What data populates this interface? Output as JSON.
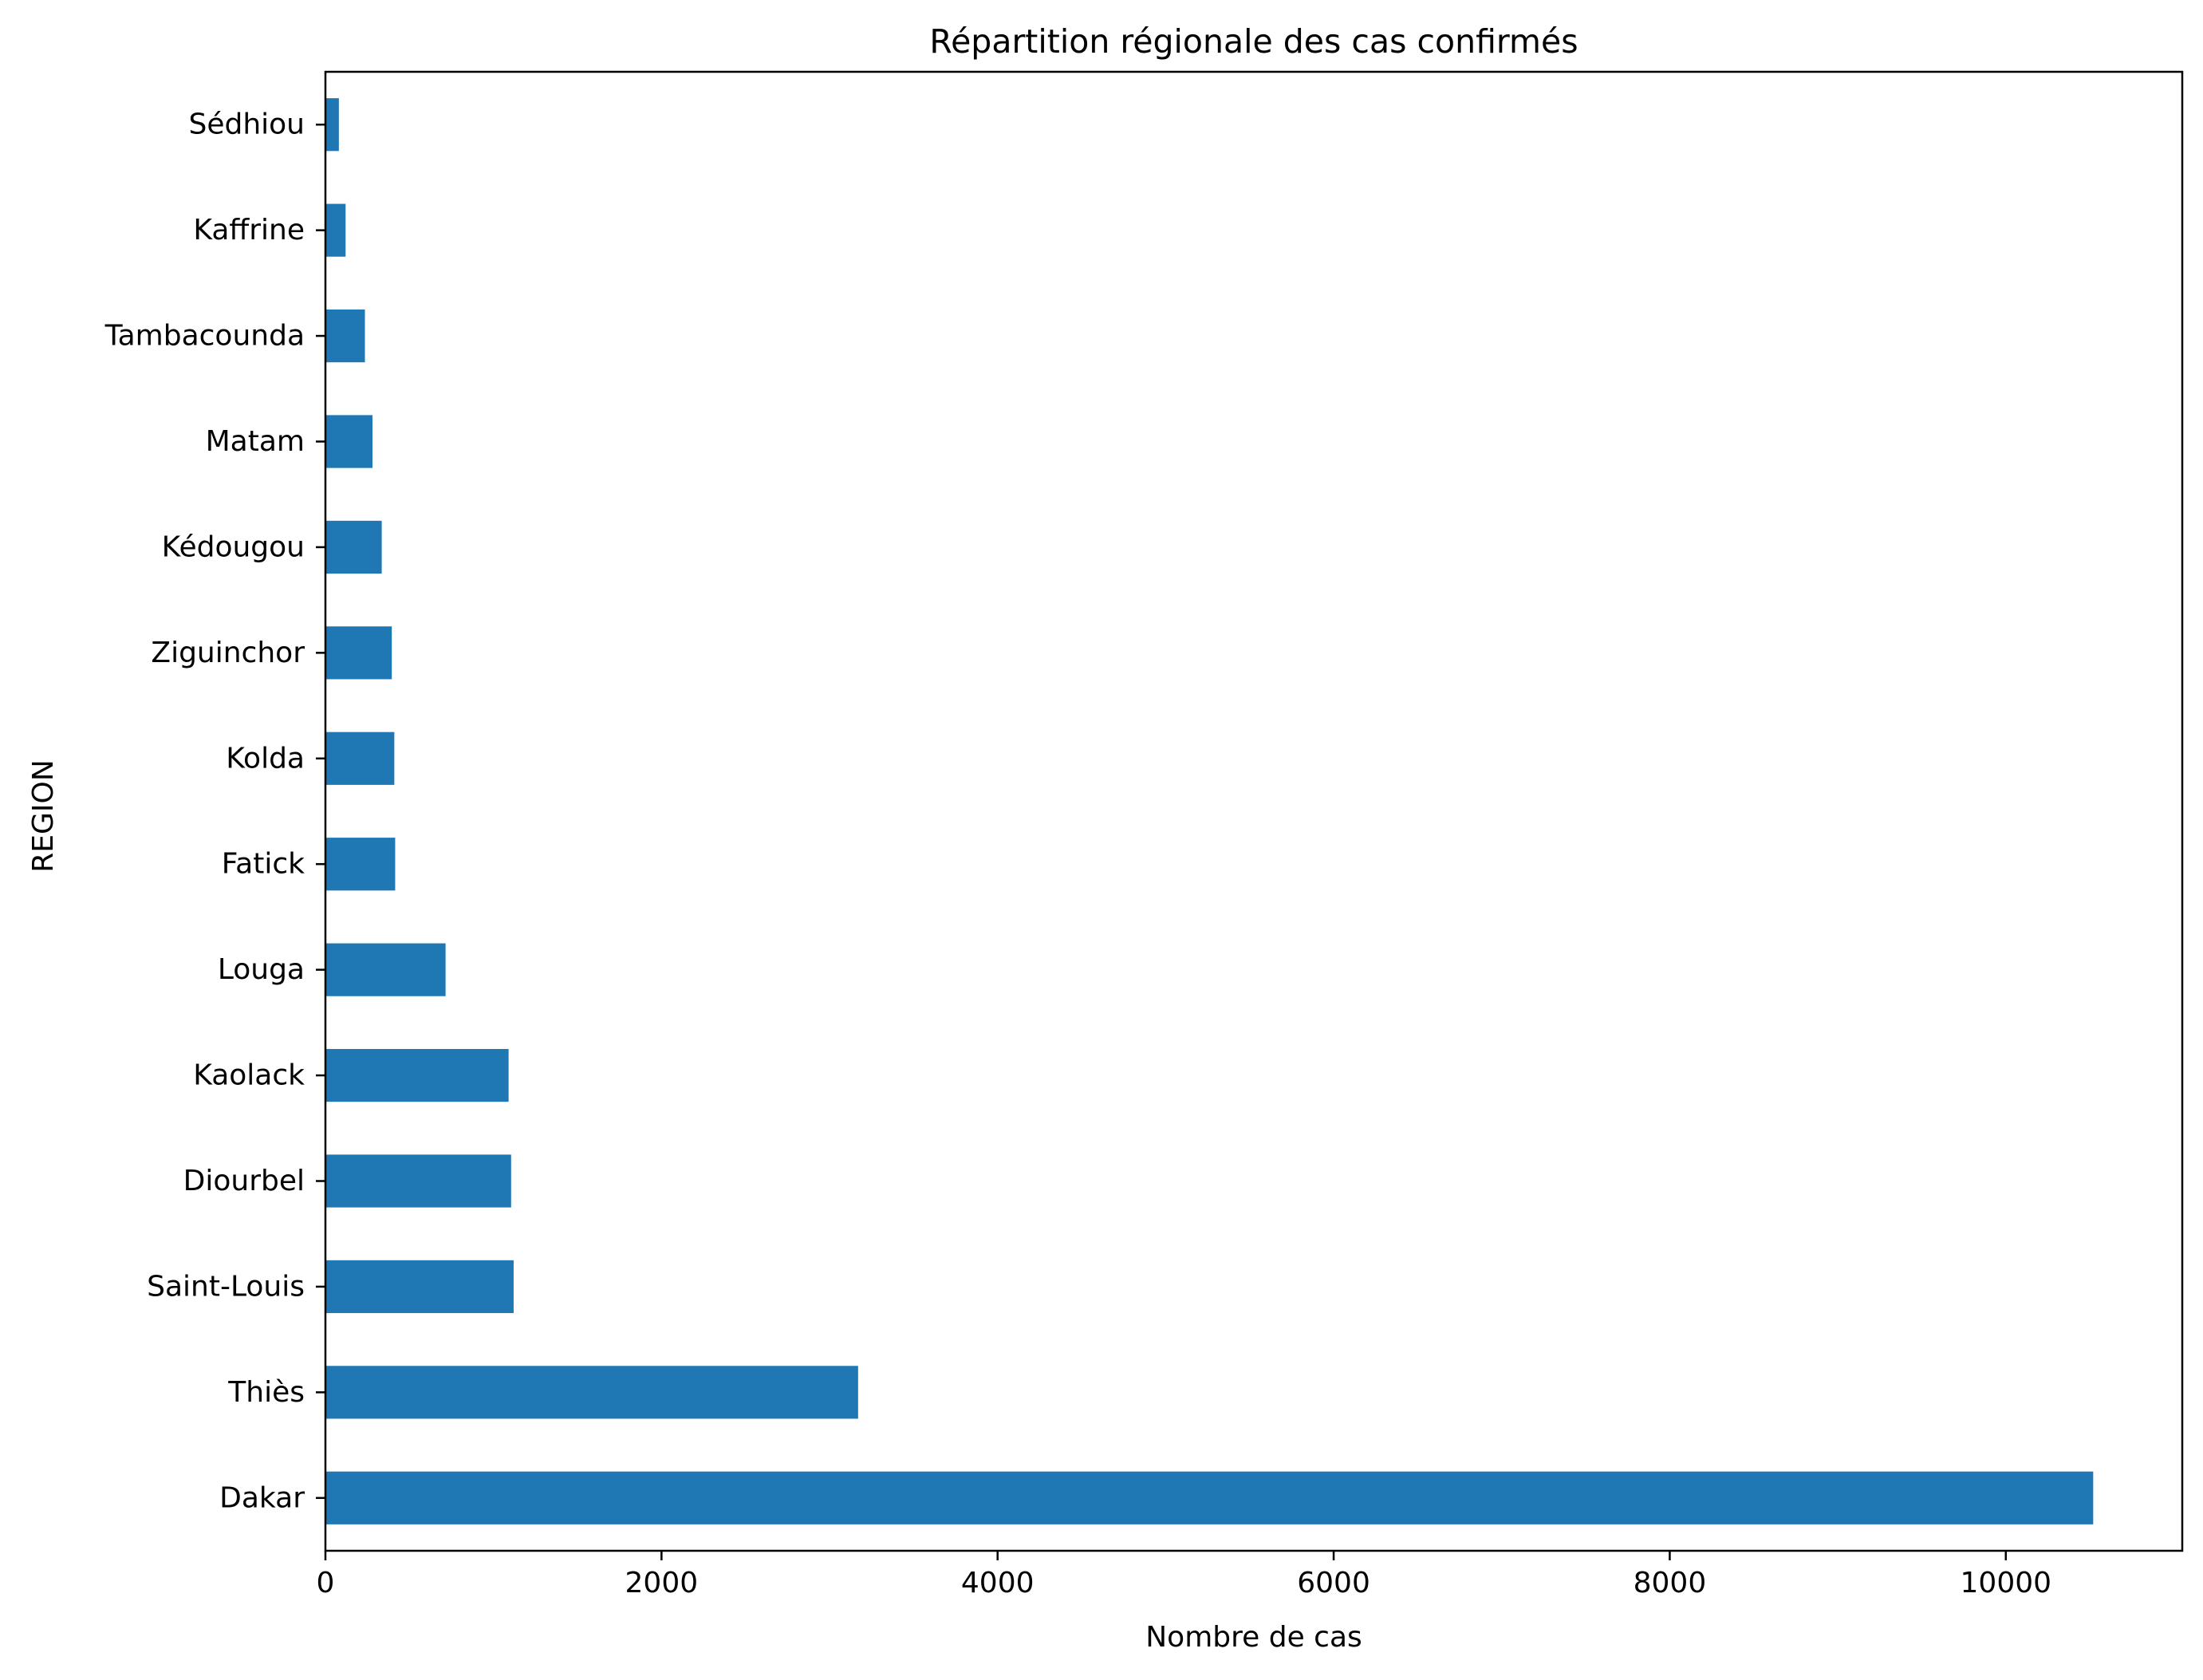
{
  "chart_data": {
    "type": "bar",
    "orientation": "horizontal",
    "title": "Répartition régionale des cas confirmés",
    "xlabel": "Nombre de cas",
    "ylabel": "REGION",
    "categories": [
      "Dakar",
      "Thiès",
      "Saint-Louis",
      "Diourbel",
      "Kaolack",
      "Louga",
      "Fatick",
      "Kolda",
      "Ziguinchor",
      "Kédougou",
      "Matam",
      "Tambacounda",
      "Kaffrine",
      "Sédhiou"
    ],
    "values": [
      10520,
      3170,
      1120,
      1105,
      1090,
      715,
      415,
      410,
      395,
      335,
      280,
      235,
      120,
      80
    ],
    "xlim": [
      0,
      11050
    ],
    "xticks": [
      0,
      2000,
      4000,
      6000,
      8000,
      10000
    ],
    "xtick_labels": [
      "0",
      "2000",
      "4000",
      "6000",
      "8000",
      "10000"
    ],
    "grid": false,
    "legend": "none",
    "colors": {
      "bar": "#1f77b4",
      "axes": "#000000",
      "background": "#ffffff"
    }
  }
}
